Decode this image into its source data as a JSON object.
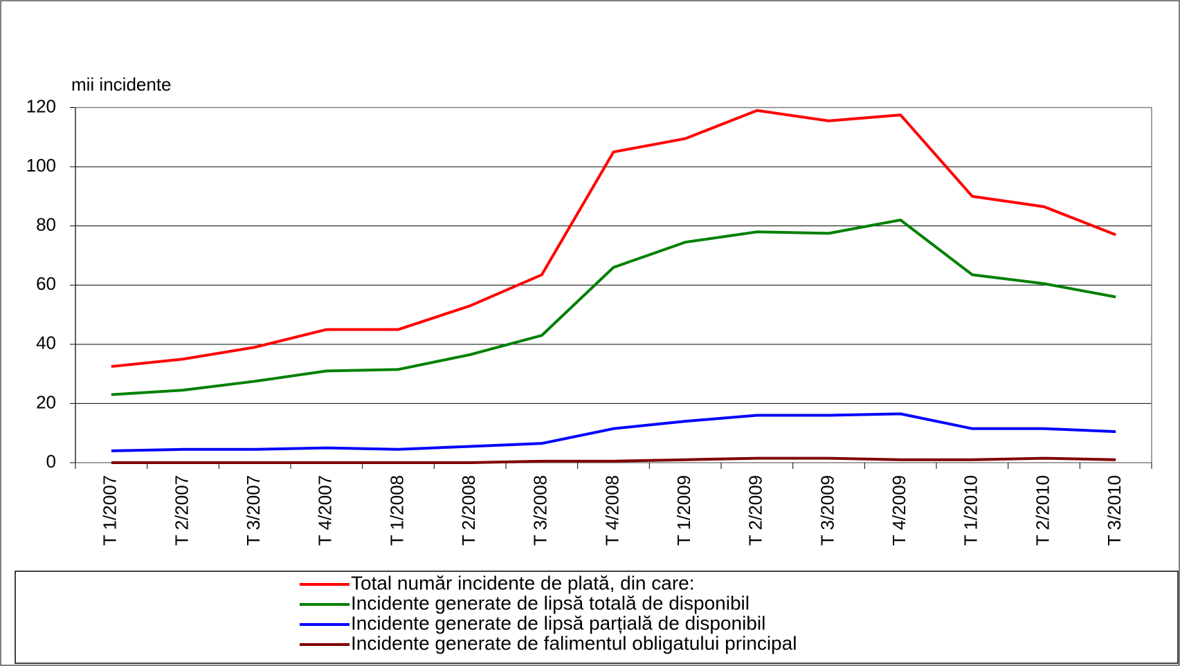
{
  "chart_data": {
    "type": "line",
    "y_axis_label": "mii incidente",
    "categories": [
      "T 1/2007",
      "T 2/2007",
      "T 3/2007",
      "T 4/2007",
      "T 1/2008",
      "T 2/2008",
      "T 3/2008",
      "T 4/2008",
      "T 1/2009",
      "T 2/2009",
      "T 3/2009",
      "T 4/2009",
      "T 1/2010",
      "T 2/2010",
      "T 3/2010"
    ],
    "series": [
      {
        "name": "Total număr incidente de plată, din care:",
        "color": "#ff0000",
        "values": [
          32.5,
          35,
          39,
          45,
          45,
          53,
          63.5,
          105,
          109.5,
          119,
          115.5,
          117.5,
          90,
          86.5,
          77
        ]
      },
      {
        "name": "Incidente generate de lipsă totală de disponibil",
        "color": "#008000",
        "values": [
          23,
          24.5,
          27.5,
          31,
          31.5,
          36.5,
          43,
          66,
          74.5,
          78,
          77.5,
          82,
          63.5,
          60.5,
          56
        ]
      },
      {
        "name": "Incidente generate de lipsă parțială de disponibil",
        "color": "#0000ff",
        "values": [
          4,
          4.5,
          4.5,
          5,
          4.5,
          5.5,
          6.5,
          11.5,
          14,
          16,
          16,
          16.5,
          11.5,
          11.5,
          10.5
        ]
      },
      {
        "name": "Incidente generate de falimentul obligatului principal",
        "color": "#800000",
        "values": [
          0,
          0,
          0,
          0,
          0,
          0,
          0.5,
          0.5,
          1,
          1.5,
          1.5,
          1,
          1,
          1.5,
          1
        ]
      }
    ],
    "ylim": [
      0,
      120
    ],
    "yticks": [
      0,
      20,
      40,
      60,
      80,
      100,
      120
    ],
    "grid": true,
    "legend": "bottom"
  }
}
